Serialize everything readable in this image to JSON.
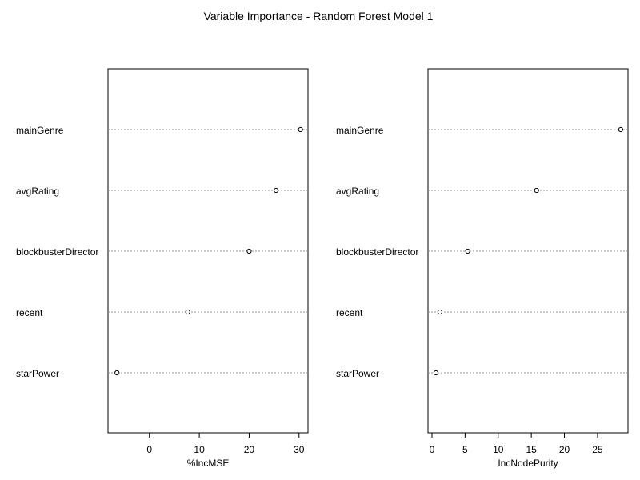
{
  "title": "Variable Importance - Random Forest Model 1",
  "chart_data": [
    {
      "type": "scatter",
      "categories": [
        "mainGenre",
        "avgRating",
        "blockbusterDirector",
        "recent",
        "starPower"
      ],
      "values": [
        30.3,
        25.4,
        20.0,
        7.7,
        -6.5
      ],
      "xlabel": "%IncMSE",
      "xticks": [
        0,
        10,
        20,
        30
      ],
      "xlim": [
        -8.3,
        31.8
      ],
      "grid": "dotted horizontal guide lines"
    },
    {
      "type": "scatter",
      "categories": [
        "mainGenre",
        "avgRating",
        "blockbusterDirector",
        "recent",
        "starPower"
      ],
      "values": [
        28.5,
        15.8,
        5.4,
        1.2,
        0.6
      ],
      "xlabel": "IncNodePurity",
      "xticks": [
        0,
        5,
        10,
        15,
        20,
        25
      ],
      "xlim": [
        -0.6,
        29.6
      ],
      "grid": "dotted horizontal guide lines"
    }
  ]
}
